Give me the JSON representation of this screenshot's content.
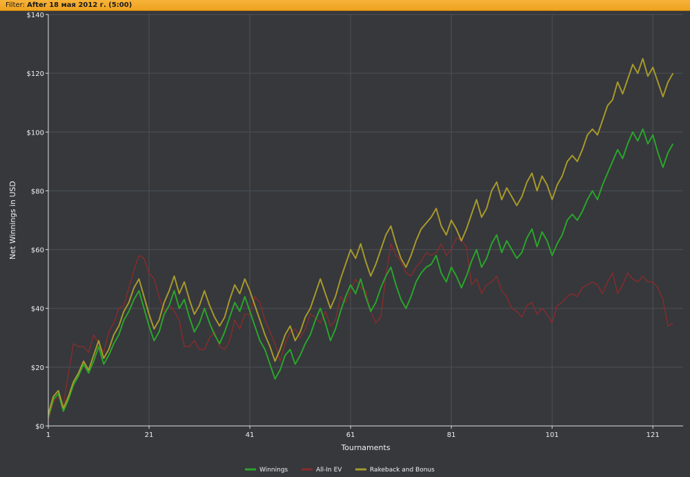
{
  "filter": {
    "label": "Filter:",
    "value": "After 18 мая 2012 г. (5:00)"
  },
  "chart_data": {
    "type": "line",
    "xlabel": "Tournaments",
    "ylabel": "Net Winnings in USD",
    "xlim": [
      1,
      127
    ],
    "ylim": [
      0,
      140
    ],
    "x_ticks": [
      1,
      21,
      41,
      61,
      81,
      101,
      121
    ],
    "y_ticks": [
      0,
      20,
      40,
      60,
      80,
      100,
      120,
      140
    ],
    "y_tick_labels": [
      "$0",
      "$20",
      "$40",
      "$60",
      "$80",
      "$100",
      "$120",
      "$140"
    ],
    "grid": true,
    "legend_position": "bottom-center",
    "series": [
      {
        "name": "Winnings",
        "color": "#2aa52a",
        "values": [
          3,
          9,
          11,
          5,
          9,
          14,
          17,
          21,
          18,
          22,
          27,
          21,
          24,
          28,
          31,
          36,
          39,
          43,
          46,
          40,
          34,
          29,
          32,
          38,
          41,
          46,
          40,
          43,
          37,
          32,
          35,
          40,
          35,
          31,
          28,
          32,
          37,
          42,
          39,
          44,
          39,
          34,
          29,
          26,
          21,
          16,
          19,
          24,
          26,
          21,
          24,
          28,
          31,
          36,
          40,
          35,
          29,
          33,
          39,
          44,
          48,
          45,
          50,
          44,
          39,
          42,
          47,
          51,
          54,
          48,
          43,
          40,
          44,
          49,
          52,
          54,
          55,
          58,
          52,
          49,
          54,
          51,
          47,
          51,
          56,
          60,
          54,
          57,
          62,
          65,
          59,
          63,
          60,
          57,
          59,
          64,
          67,
          61,
          66,
          63,
          58,
          62,
          65,
          70,
          72,
          70,
          73,
          77,
          80,
          77,
          82,
          86,
          90,
          94,
          91,
          96,
          100,
          97,
          101,
          96,
          99,
          93,
          88,
          93,
          96
        ]
      },
      {
        "name": "All-In EV",
        "color": "#8b2b2b",
        "values": [
          2,
          8,
          10,
          7,
          18,
          28,
          27,
          27,
          25,
          31,
          28,
          25,
          32,
          35,
          40,
          41,
          47,
          53,
          58,
          57,
          52,
          50,
          44,
          39,
          41,
          39,
          36,
          27,
          27,
          29,
          26,
          26,
          30,
          32,
          27,
          26,
          29,
          36,
          33,
          38,
          38,
          44,
          42,
          36,
          32,
          28,
          22,
          28,
          32,
          33,
          30,
          33,
          38,
          37,
          35,
          39,
          34,
          36,
          44,
          42,
          46,
          50,
          47,
          46,
          39,
          35,
          37,
          51,
          62,
          58,
          56,
          52,
          51,
          54,
          56,
          59,
          58,
          59,
          62,
          58,
          60,
          64,
          63,
          61,
          48,
          50,
          45,
          48,
          49,
          51,
          46,
          44,
          40,
          39,
          37,
          41,
          42,
          38,
          40,
          38,
          35,
          41,
          42,
          44,
          45,
          44,
          47,
          48,
          49,
          48,
          45,
          49,
          52,
          45,
          48,
          52,
          50,
          49,
          51,
          49,
          49,
          47,
          43,
          34,
          35
        ]
      },
      {
        "name": "Rakeback and Bonus",
        "color": "#a89a2a",
        "values": [
          4,
          10,
          12,
          6,
          10,
          15,
          18,
          22,
          19,
          24,
          29,
          23,
          26,
          31,
          34,
          39,
          42,
          47,
          50,
          44,
          38,
          33,
          36,
          42,
          46,
          51,
          45,
          49,
          43,
          38,
          41,
          46,
          41,
          37,
          34,
          37,
          43,
          48,
          45,
          50,
          46,
          41,
          36,
          31,
          27,
          22,
          26,
          31,
          34,
          29,
          32,
          37,
          40,
          45,
          50,
          45,
          40,
          44,
          50,
          55,
          60,
          57,
          62,
          56,
          51,
          55,
          60,
          65,
          68,
          62,
          57,
          54,
          58,
          63,
          67,
          69,
          71,
          74,
          68,
          65,
          70,
          67,
          63,
          67,
          72,
          77,
          71,
          74,
          80,
          83,
          77,
          81,
          78,
          75,
          78,
          83,
          86,
          80,
          85,
          82,
          77,
          82,
          85,
          90,
          92,
          90,
          94,
          99,
          101,
          99,
          104,
          109,
          111,
          117,
          113,
          118,
          123,
          120,
          125,
          119,
          122,
          117,
          112,
          117,
          120
        ]
      }
    ]
  }
}
